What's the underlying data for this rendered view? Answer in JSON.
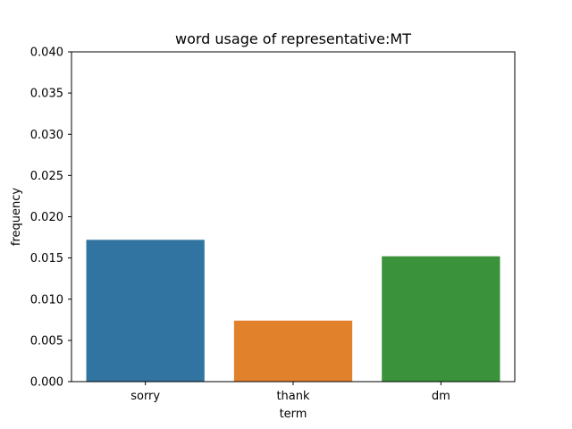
{
  "chart_data": {
    "type": "bar",
    "title": "word usage of representative:MT",
    "xlabel": "term",
    "ylabel": "frequency",
    "categories": [
      "sorry",
      "thank",
      "dm"
    ],
    "values": [
      0.0172,
      0.0074,
      0.0152
    ],
    "colors": [
      "#3274a1",
      "#e1812c",
      "#3a923a"
    ],
    "ylim": [
      0,
      0.04
    ],
    "yticks": [
      0.0,
      0.005,
      0.01,
      0.015,
      0.02,
      0.025,
      0.03,
      0.035,
      0.04
    ],
    "ytick_labels": [
      "0.000",
      "0.005",
      "0.010",
      "0.015",
      "0.020",
      "0.025",
      "0.030",
      "0.035",
      "0.040"
    ],
    "grid": false
  }
}
